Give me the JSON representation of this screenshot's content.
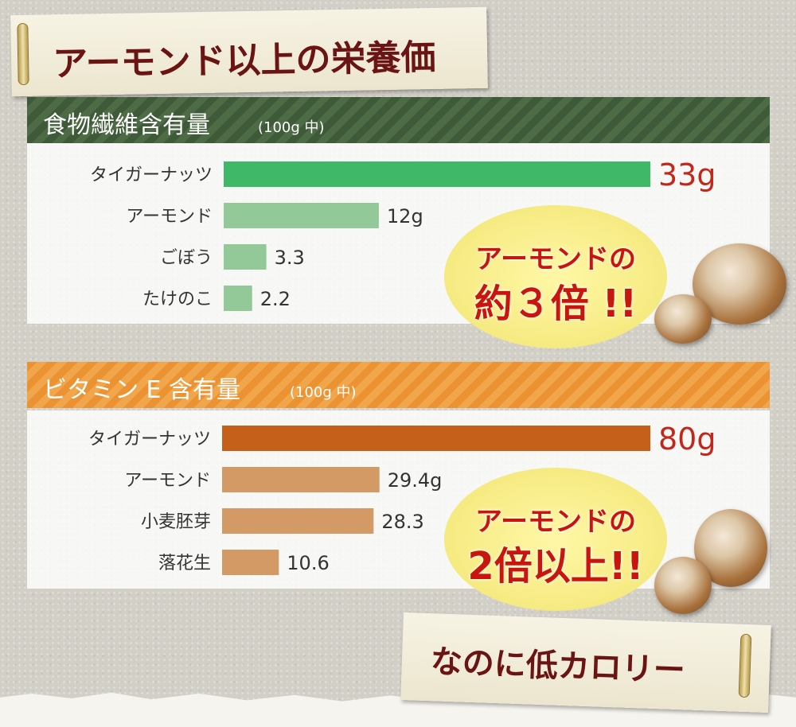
{
  "title": "アーモンド以上の栄養価",
  "footer": "なのに低カロリー",
  "colors": {
    "fiber_band": "#3f5a39",
    "fiber_highlight": "#3fb867",
    "fiber_bar": "#93c998",
    "vite_band": "#eb9233",
    "vite_highlight": "#c4601a",
    "vite_bar": "#d39a65",
    "highlight_text": "#c2271c",
    "title_text": "#6b1414"
  },
  "sections": [
    {
      "heading": "食物繊維含有量",
      "unit_note": "(100g 中)",
      "callout": {
        "line1": "アーモンドの",
        "line2": "約３倍 !!"
      }
    },
    {
      "heading": "ビタミン E 含有量",
      "unit_note": "(100g 中)",
      "callout": {
        "line1": "アーモンドの",
        "line2": "2倍以上!!"
      }
    }
  ],
  "chart_data": [
    {
      "type": "bar",
      "orientation": "horizontal",
      "title": "食物繊維含有量",
      "categories": [
        "タイガーナッツ",
        "アーモンド",
        "ごぼう",
        "たけのこ"
      ],
      "values": [
        33,
        12,
        3.3,
        2.2
      ],
      "value_labels": [
        "33g",
        "12g",
        "3.3",
        "2.2"
      ],
      "xlim": [
        0,
        33
      ]
    },
    {
      "type": "bar",
      "orientation": "horizontal",
      "title": "ビタミン E 含有量",
      "categories": [
        "タイガーナッツ",
        "アーモンド",
        "小麦胚芽",
        "落花生"
      ],
      "values": [
        80,
        29.4,
        28.3,
        10.6
      ],
      "value_labels": [
        "80g",
        "29.4g",
        "28.3",
        "10.6"
      ],
      "xlim": [
        0,
        80
      ]
    }
  ]
}
